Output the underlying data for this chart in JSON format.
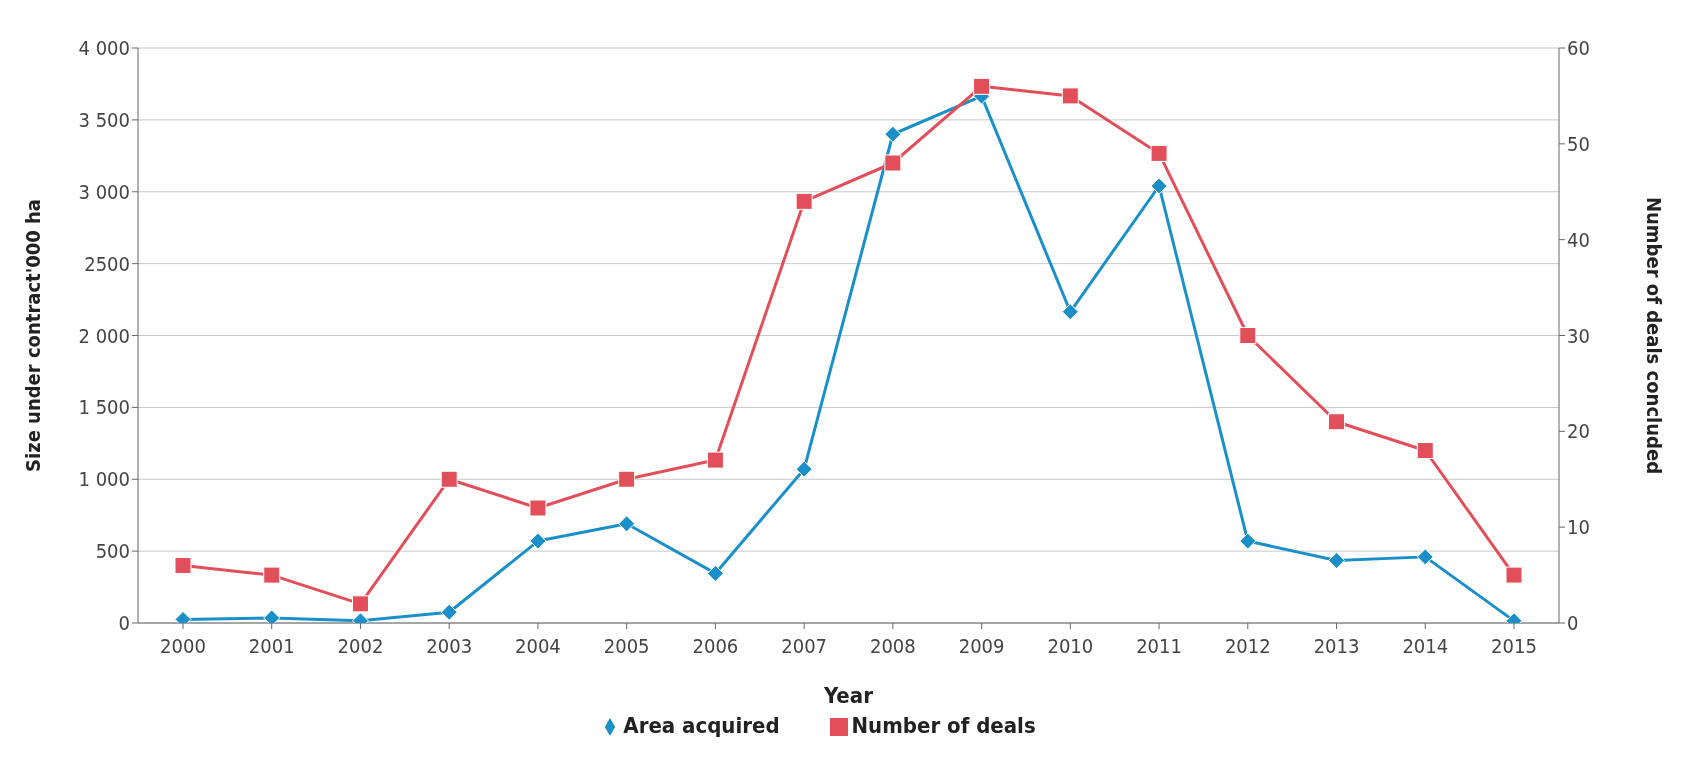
{
  "chart_data": {
    "type": "line",
    "xlabel": "Year",
    "ylabel": "Size under contract'000 ha",
    "y2label": "Number of deals concluded",
    "categories": [
      "2000",
      "2001",
      "2002",
      "2003",
      "2004",
      "2005",
      "2006",
      "2007",
      "2008",
      "2009",
      "2010",
      "2011",
      "2012",
      "2013",
      "2014",
      "2015"
    ],
    "series": [
      {
        "name": "Area acquired",
        "color": "#1b8fc8",
        "marker": "diamond",
        "values": [
          25,
          35,
          15,
          75,
          570,
          690,
          345,
          1070,
          3400,
          3665,
          2165,
          3040,
          570,
          435,
          460,
          15
        ]
      },
      {
        "name": "Number of deals",
        "color": "#e04f5a",
        "marker": "square",
        "axis": "y2",
        "values": [
          6,
          5,
          2,
          15,
          12,
          15,
          17,
          44,
          48,
          56,
          55,
          49,
          30,
          21,
          18,
          5
        ]
      }
    ],
    "ylim": [
      0,
      4000
    ],
    "yticks": [
      0,
      500,
      {
        "value": 1000,
        "label": "1 000"
      },
      {
        "value": 1500,
        "label": "1 500"
      },
      {
        "value": 2000,
        "label": "2 000"
      },
      {
        "value": 2500,
        "label": "2500"
      },
      {
        "value": 3000,
        "label": "3 000"
      },
      {
        "value": 3500,
        "label": "3 500"
      },
      {
        "value": 4000,
        "label": "4 000"
      }
    ],
    "y2lim": [
      0,
      60
    ],
    "y2ticks": [
      0,
      10,
      20,
      30,
      40,
      50,
      60
    ],
    "grid": "y",
    "legend": "bottom",
    "line_style": "solid"
  }
}
